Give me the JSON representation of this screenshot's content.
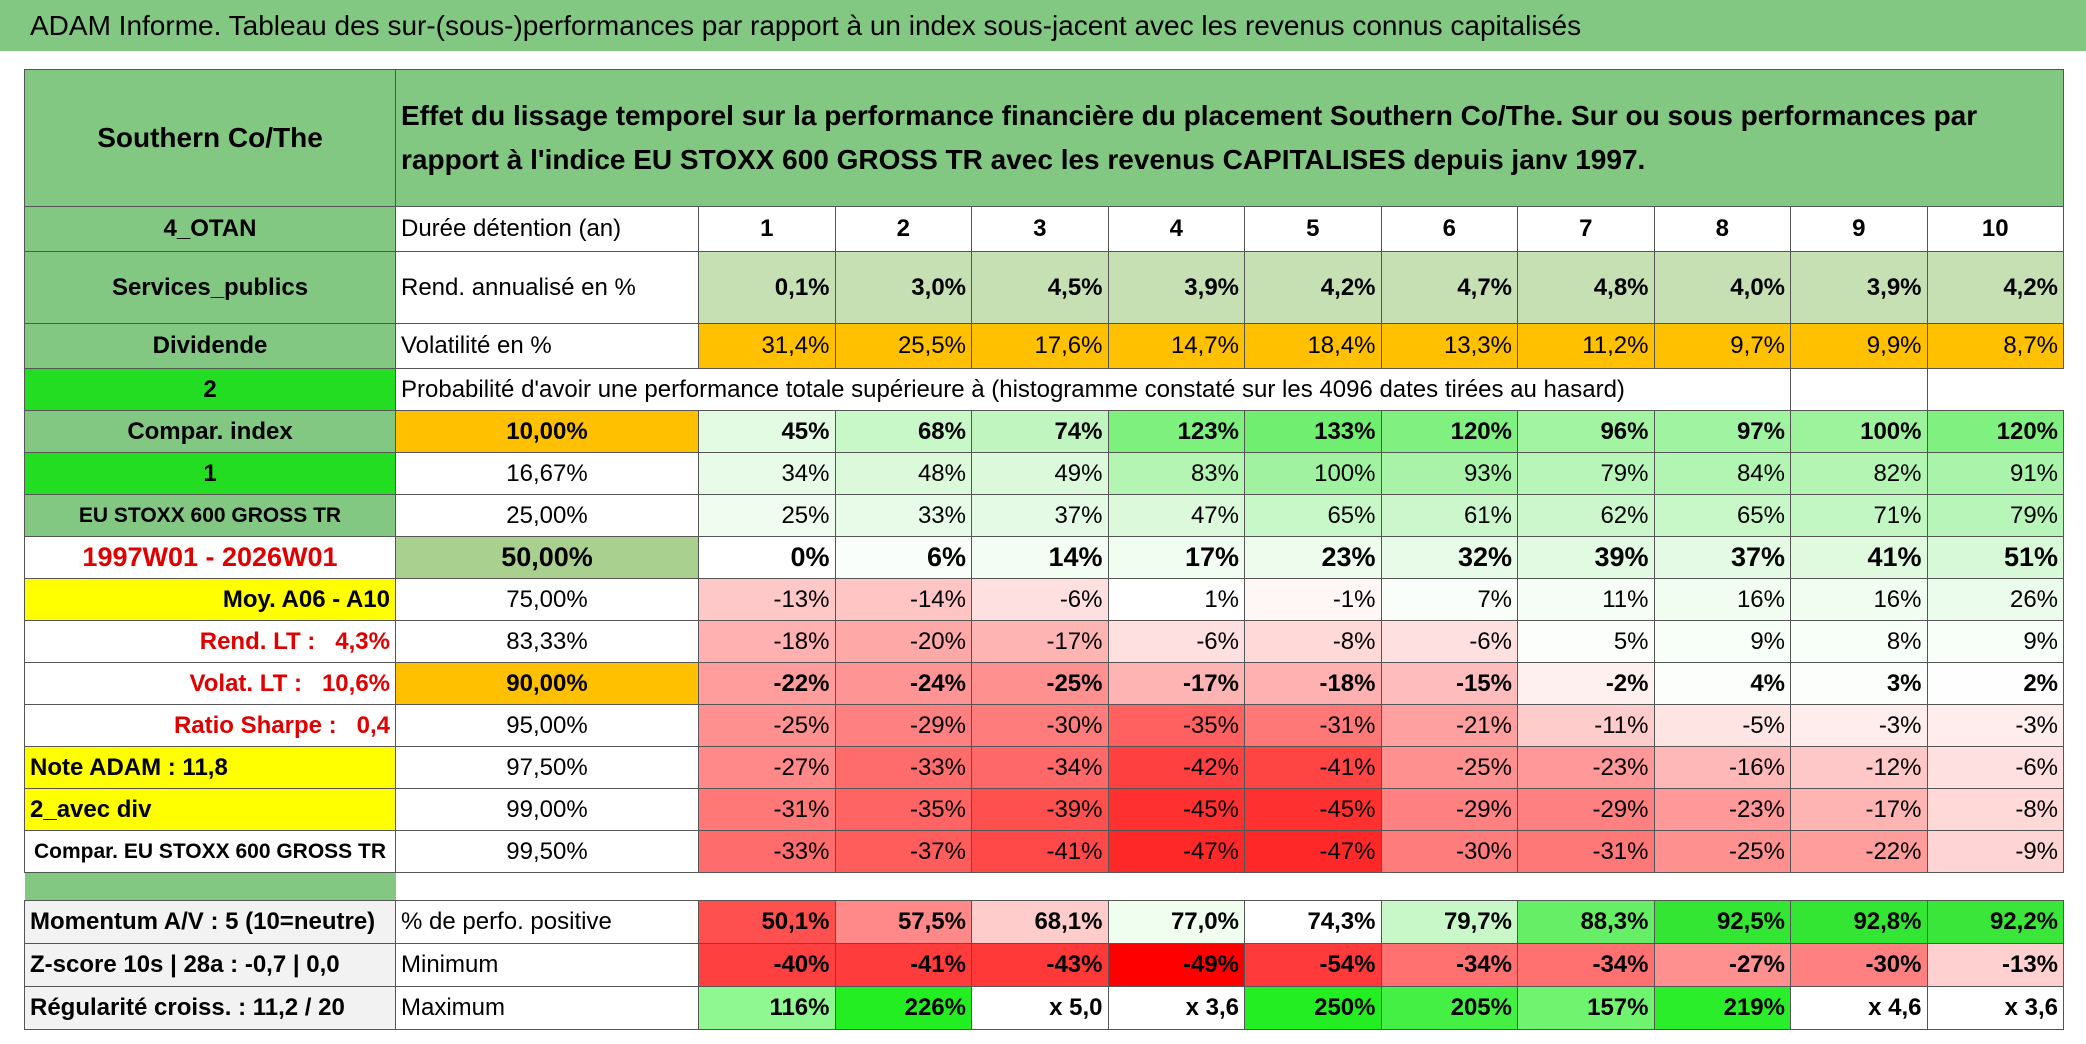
{
  "title": "ADAM Informe. Tableau des sur-(sous-)performances par rapport à un index sous-jacent avec les revenus connus capitalisés",
  "table": {
    "header": {
      "left": "Southern Co/The",
      "text": "Effet du lissage temporel sur la performance financière du placement Southern Co/The. Sur ou sous performances par rapport à l'indice EU STOXX 600 GROSS TR avec les revenus CAPITALISES depuis janv 1997."
    },
    "rows": [
      [
        "4_OTAN",
        "Durée détention (an)",
        1,
        2,
        3,
        4,
        5,
        6,
        7,
        8,
        9,
        10
      ],
      [
        "Services_publics",
        "Rend. annualisé en %",
        "0,1%",
        "3,0%",
        "4,5%",
        "3,9%",
        "4,2%",
        "4,7%",
        "4,8%",
        "4,0%",
        "3,9%",
        "4,2%"
      ],
      [
        "Dividende",
        "Volatilité en %",
        "31,4%",
        "25,5%",
        "17,6%",
        "14,7%",
        "18,4%",
        "13,3%",
        "11,2%",
        "9,7%",
        "9,9%",
        "8,7%"
      ],
      [
        "2",
        "Probabilité d'avoir une performance totale supérieure à (histogramme constaté sur les 4096 dates tirées au hasard)"
      ],
      [
        "Compar. index",
        "10,00%",
        "45%",
        "68%",
        "74%",
        "123%",
        "133%",
        "120%",
        "96%",
        "97%",
        "100%",
        "120%"
      ],
      [
        "1",
        "16,67%",
        "34%",
        "48%",
        "49%",
        "83%",
        "100%",
        "93%",
        "79%",
        "84%",
        "82%",
        "91%"
      ],
      [
        "EU STOXX 600 GROSS TR",
        "25,00%",
        "25%",
        "33%",
        "37%",
        "47%",
        "65%",
        "61%",
        "62%",
        "65%",
        "71%",
        "79%"
      ],
      [
        "1997W01 - 2026W01",
        "50,00%",
        "0%",
        "6%",
        "14%",
        "17%",
        "23%",
        "32%",
        "39%",
        "37%",
        "41%",
        "51%"
      ],
      [
        "Moy. A06 - A10",
        "75,00%",
        "-13%",
        "-14%",
        "-6%",
        "1%",
        "-1%",
        "7%",
        "11%",
        "16%",
        "16%",
        "26%"
      ],
      [
        "Rend. LT :   4,3%",
        "83,33%",
        "-18%",
        "-20%",
        "-17%",
        "-6%",
        "-8%",
        "-6%",
        "5%",
        "9%",
        "8%",
        "9%"
      ],
      [
        "Volat. LT :   10,6%",
        "90,00%",
        "-22%",
        "-24%",
        "-25%",
        "-17%",
        "-18%",
        "-15%",
        "-2%",
        "4%",
        "3%",
        "2%"
      ],
      [
        "Ratio Sharpe :   0,4",
        "95,00%",
        "-25%",
        "-29%",
        "-30%",
        "-35%",
        "-31%",
        "-21%",
        "-11%",
        "-5%",
        "-3%",
        "-3%"
      ],
      [
        "Note ADAM : 11,8",
        "97,50%",
        "-27%",
        "-33%",
        "-34%",
        "-42%",
        "-41%",
        "-25%",
        "-23%",
        "-16%",
        "-12%",
        "-6%"
      ],
      [
        "2_avec div",
        "99,00%",
        "-31%",
        "-35%",
        "-39%",
        "-45%",
        "-45%",
        "-29%",
        "-29%",
        "-23%",
        "-17%",
        "-8%"
      ],
      [
        "Compar. EU STOXX 600 GROSS TR",
        "99,50%",
        "-33%",
        "-37%",
        "-41%",
        "-47%",
        "-47%",
        "-30%",
        "-31%",
        "-25%",
        "-22%",
        "-9%"
      ],
      [
        "Momentum A/V : 5 (10=neutre)",
        "% de perfo. positive",
        "50,1%",
        "57,5%",
        "68,1%",
        "77,0%",
        "74,3%",
        "79,7%",
        "88,3%",
        "92,5%",
        "92,8%",
        "92,2%"
      ],
      [
        "Z-score 10s | 28a : -0,7 | 0,0",
        "Minimum",
        "-40%",
        "-41%",
        "-43%",
        "-49%",
        "-54%",
        "-34%",
        "-34%",
        "-27%",
        "-30%",
        "-13%"
      ],
      [
        "Régularité croiss. : 11,2 / 20",
        "Maximum",
        "116%",
        "226%",
        "x 5,0",
        "x 3,6",
        "250%",
        "205%",
        "157%",
        "219%",
        "x 4,6",
        "x 3,6"
      ]
    ],
    "colors": [
      [
        "#82c882",
        "#ffffff",
        "#ffffff",
        "#ffffff",
        "#ffffff",
        "#ffffff",
        "#ffffff",
        "#ffffff",
        "#ffffff",
        "#ffffff",
        "#ffffff",
        "#ffffff"
      ],
      [
        "#82c882",
        "#ffffff",
        "#c6e0b4",
        "#c6e0b4",
        "#c6e0b4",
        "#c6e0b4",
        "#c6e0b4",
        "#c6e0b4",
        "#c6e0b4",
        "#c6e0b4",
        "#c6e0b4",
        "#c6e0b4"
      ],
      [
        "#82c882",
        "#ffffff",
        "#ffc000",
        "#ffc000",
        "#ffc000",
        "#ffc000",
        "#ffc000",
        "#ffc000",
        "#ffc000",
        "#ffc000",
        "#ffc000",
        "#ffc000"
      ],
      [
        "#22dd22",
        "#ffffff"
      ],
      [
        "#82c882",
        "#ffc000",
        "#e2fbe2",
        "#c8f7c8",
        "#c0f5c0",
        "#7ef07e",
        "#70ee70",
        "#80f080",
        "#a2f3a2",
        "#a0f3a0",
        "#9cf39c",
        "#80f080"
      ],
      [
        "#22dd22",
        "#ffffff",
        "#e8fbe8",
        "#dcf9dc",
        "#dcf9dc",
        "#b4f5b4",
        "#a0f2a0",
        "#a8f3a8",
        "#b8f5b8",
        "#b2f4b2",
        "#b4f5b4",
        "#aaf3aa"
      ],
      [
        "#82c882",
        "#ffffff",
        "#f0fcf0",
        "#e8fbe8",
        "#e4fae4",
        "#dcf9dc",
        "#c8f7c8",
        "#ccf7cc",
        "#ccf7cc",
        "#c8f7c8",
        "#c2f6c2",
        "#b8f5b8"
      ],
      [
        "#ffffff",
        "#a9d08e",
        "#ffffff",
        "#fafefa",
        "#f4fdf4",
        "#f2fdf2",
        "#eefcee",
        "#e8fbe8",
        "#e2fae2",
        "#e4fae4",
        "#e0fae0",
        "#d8f9d8"
      ],
      [
        "#ffff00",
        "#ffffff",
        "#ffc8c8",
        "#ffc4c4",
        "#ffe0e0",
        "#fefffe",
        "#fff6f6",
        "#fafefa",
        "#f6fdf6",
        "#f2fdf2",
        "#f2fdf2",
        "#ecfcec"
      ],
      [
        "#ffffff",
        "#ffffff",
        "#ffb0b0",
        "#ffa8a8",
        "#ffb4b4",
        "#ffe0e0",
        "#ffd8d8",
        "#ffe0e0",
        "#fbfefb",
        "#f8fef8",
        "#f8fef8",
        "#f8fef8"
      ],
      [
        "#ffffff",
        "#ffc000",
        "#ff9c9c",
        "#ff9494",
        "#ff9090",
        "#ffb4b4",
        "#ffb0b0",
        "#ffbcbc",
        "#fff0f0",
        "#fcfefc",
        "#fcfefc",
        "#fdfefd"
      ],
      [
        "#ffffff",
        "#ffffff",
        "#ff9090",
        "#ff8080",
        "#ff7c7c",
        "#ff6060",
        "#ff7878",
        "#ffa0a0",
        "#ffcccc",
        "#ffe4e4",
        "#ffecec",
        "#ffecec"
      ],
      [
        "#ffff00",
        "#ffffff",
        "#ff8888",
        "#ff6c6c",
        "#ff6868",
        "#ff4040",
        "#ff4444",
        "#ff9090",
        "#ff9898",
        "#ffb8b8",
        "#ffc8c8",
        "#ffe0e0"
      ],
      [
        "#ffff00",
        "#ffffff",
        "#ff7878",
        "#ff6464",
        "#ff5050",
        "#ff3030",
        "#ff3030",
        "#ff8080",
        "#ff8080",
        "#ff9898",
        "#ffb4b4",
        "#ffd8d8"
      ],
      [
        "#ffffff",
        "#ffffff",
        "#ff6c6c",
        "#ff5c5c",
        "#ff4848",
        "#ff2828",
        "#ff2828",
        "#ff7c7c",
        "#ff7878",
        "#ff9090",
        "#ff9c9c",
        "#ffd4d4"
      ],
      [
        "#f2f2f2",
        "#ffffff",
        "#ff5050",
        "#ff8888",
        "#ffcccc",
        "#f0fef0",
        "#ffffff",
        "#c8f7c8",
        "#66ee66",
        "#33e633",
        "#33e633",
        "#3ae63a"
      ],
      [
        "#f2f2f2",
        "#ffffff",
        "#ff4040",
        "#ff3c3c",
        "#ff3838",
        "#ff0000",
        "#ff3a3a",
        "#ff7070",
        "#ff7070",
        "#ff9090",
        "#ff8080",
        "#ffd0d0"
      ],
      [
        "#f2f2f2",
        "#ffffff",
        "#90f890",
        "#22ee22",
        "#ffffff",
        "#ffffff",
        "#22ee22",
        "#44f044",
        "#70f470",
        "#2aee2a",
        "#ffffff",
        "#ffffff"
      ]
    ]
  }
}
